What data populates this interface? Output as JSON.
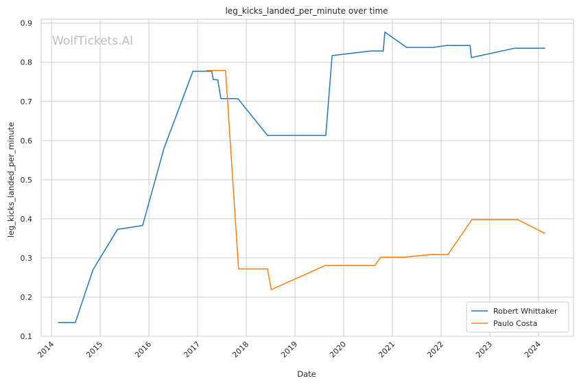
{
  "chart_data": {
    "type": "line",
    "title": "leg_kicks_landed_per_minute over time",
    "xlabel": "Date",
    "ylabel": "leg_kicks_landed_per_minute",
    "watermark": "WolfTickets.AI",
    "x_ticks": [
      "2014",
      "2015",
      "2016",
      "2017",
      "2018",
      "2019",
      "2020",
      "2021",
      "2022",
      "2023",
      "2024"
    ],
    "y_ticks": [
      "0.1",
      "0.2",
      "0.3",
      "0.4",
      "0.5",
      "0.6",
      "0.7",
      "0.8",
      "0.9"
    ],
    "xlim": [
      "2013-10-15",
      "2024-09-20"
    ],
    "ylim": [
      0.1,
      0.91
    ],
    "grid": true,
    "legend_position": "lower-right",
    "series": [
      {
        "name": "Robert Whittaker",
        "color": "#1f77b4",
        "points": [
          [
            "2014-02-22",
            0.135
          ],
          [
            "2014-06-28",
            0.135
          ],
          [
            "2014-11-08",
            0.27
          ],
          [
            "2015-05-10",
            0.373
          ],
          [
            "2015-11-15",
            0.383
          ],
          [
            "2016-04-23",
            0.58
          ],
          [
            "2016-11-26",
            0.777
          ],
          [
            "2017-04-16",
            0.777
          ],
          [
            "2017-04-28",
            0.756
          ],
          [
            "2017-06-01",
            0.755
          ],
          [
            "2017-06-24",
            0.707
          ],
          [
            "2017-10-30",
            0.707
          ],
          [
            "2018-06-09",
            0.613
          ],
          [
            "2019-08-20",
            0.613
          ],
          [
            "2019-10-06",
            0.817
          ],
          [
            "2020-07-25",
            0.829
          ],
          [
            "2020-10-24",
            0.829
          ],
          [
            "2020-11-05",
            0.877
          ],
          [
            "2021-04-17",
            0.838
          ],
          [
            "2021-10-30",
            0.838
          ],
          [
            "2022-02-12",
            0.843
          ],
          [
            "2022-08-06",
            0.843
          ],
          [
            "2022-08-16",
            0.812
          ],
          [
            "2023-07-08",
            0.836
          ],
          [
            "2024-02-17",
            0.836
          ]
        ]
      },
      {
        "name": "Paulo Costa",
        "color": "#ff7f0e",
        "points": [
          [
            "2017-03-11",
            0.779
          ],
          [
            "2017-07-29",
            0.779
          ],
          [
            "2017-11-04",
            0.272
          ],
          [
            "2018-06-09",
            0.272
          ],
          [
            "2018-07-07",
            0.219
          ],
          [
            "2019-08-17",
            0.281
          ],
          [
            "2020-08-22",
            0.281
          ],
          [
            "2020-10-05",
            0.302
          ],
          [
            "2021-04-03",
            0.302
          ],
          [
            "2021-10-23",
            0.309
          ],
          [
            "2022-02-22",
            0.309
          ],
          [
            "2022-08-20",
            0.398
          ],
          [
            "2023-07-30",
            0.398
          ],
          [
            "2024-02-17",
            0.363
          ]
        ]
      }
    ]
  }
}
